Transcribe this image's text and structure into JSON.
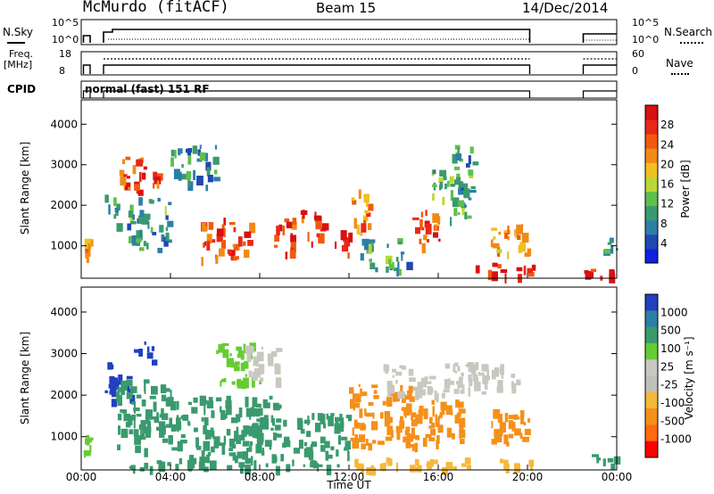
{
  "header": {
    "station": "McMurdo (fitACF)",
    "beam": "Beam 15",
    "date": "14/Dec/2014"
  },
  "params": {
    "nsky_label": "N.Sky",
    "nsearch_label": "N.Search",
    "freq_label_1": "Freq.",
    "freq_label_2": "[MHz]",
    "nave_label": "Nave",
    "cpid_label": "CPID",
    "cpid_value": "normal (fast) 151 RF",
    "nsky_ticks": [
      "10^5",
      "10^0"
    ],
    "nsearch_ticks": [
      "10^5",
      "10^0"
    ],
    "freq_ticks": [
      "18",
      "8"
    ],
    "nave_ticks": [
      "60",
      "0"
    ]
  },
  "colors": {
    "power": [
      "#1020e0",
      "#1f49b0",
      "#2d7ea6",
      "#3a9a6e",
      "#5fbf4a",
      "#b8d838",
      "#f0c020",
      "#f28a14",
      "#f05a10",
      "#e82818",
      "#d81010"
    ],
    "velocity": [
      "#ff0000",
      "#ff6a10",
      "#f5901a",
      "#f5b83a",
      "#c8c8c0",
      "#c0c0b8",
      "#66cc33",
      "#3a9a6e",
      "#2d7ea6",
      "#2040c0"
    ]
  },
  "chart_data": [
    {
      "type": "heatmap",
      "title": "",
      "xlabel": "",
      "ylabel": "Slant Range [km]",
      "xlim": [
        "00:00",
        "24:00"
      ],
      "ylim": [
        200,
        4600
      ],
      "y_ticks": [
        "1000",
        "2000",
        "3000",
        "4000"
      ],
      "colorbar": {
        "label": "Power [dB]",
        "ticks": [
          "4",
          "8",
          "12",
          "16",
          "20",
          "24",
          "28"
        ],
        "range": [
          0,
          32
        ]
      },
      "regions": [
        {
          "t0": 0.1,
          "t1": 0.4,
          "r0": 700,
          "r1": 1200,
          "v": 22
        },
        {
          "t0": 1.0,
          "t1": 1.6,
          "r0": 1500,
          "r1": 2300,
          "v": 10
        },
        {
          "t0": 1.7,
          "t1": 3.4,
          "r0": 2300,
          "r1": 3200,
          "v": 26
        },
        {
          "t0": 2.0,
          "t1": 4.0,
          "r0": 900,
          "r1": 2200,
          "v": 10
        },
        {
          "t0": 4.0,
          "t1": 6.0,
          "r0": 2500,
          "r1": 3500,
          "v": 8
        },
        {
          "t0": 5.2,
          "t1": 6.4,
          "r0": 700,
          "r1": 1700,
          "v": 26
        },
        {
          "t0": 6.5,
          "t1": 7.6,
          "r0": 700,
          "r1": 1600,
          "v": 26
        },
        {
          "t0": 8.5,
          "t1": 9.5,
          "r0": 800,
          "r1": 1700,
          "v": 27
        },
        {
          "t0": 9.8,
          "t1": 10.8,
          "r0": 1100,
          "r1": 1900,
          "v": 28
        },
        {
          "t0": 11.3,
          "t1": 12.0,
          "r0": 700,
          "r1": 1400,
          "v": 28
        },
        {
          "t0": 12.0,
          "t1": 12.9,
          "r0": 1300,
          "r1": 2400,
          "v": 22
        },
        {
          "t0": 12.5,
          "t1": 14.6,
          "r0": 400,
          "r1": 1200,
          "v": 10
        },
        {
          "t0": 14.8,
          "t1": 16.2,
          "r0": 1000,
          "r1": 1900,
          "v": 26
        },
        {
          "t0": 15.5,
          "t1": 17.0,
          "r0": 2200,
          "r1": 3000,
          "v": 12
        },
        {
          "t0": 16.5,
          "t1": 17.6,
          "r0": 1700,
          "r1": 3500,
          "v": 10
        },
        {
          "t0": 17.6,
          "t1": 20.2,
          "r0": 300,
          "r1": 600,
          "v": 30
        },
        {
          "t0": 18.3,
          "t1": 20.0,
          "r0": 800,
          "r1": 1600,
          "v": 22
        },
        {
          "t0": 22.5,
          "t1": 24.0,
          "r0": 250,
          "r1": 500,
          "v": 30
        },
        {
          "t0": 23.4,
          "t1": 24.0,
          "r0": 800,
          "r1": 1200,
          "v": 10
        }
      ]
    },
    {
      "type": "heatmap",
      "title": "",
      "xlabel": "Time UT",
      "ylabel": "Slant Range [km]",
      "xlim": [
        "00:00",
        "24:00"
      ],
      "ylim": [
        200,
        4600
      ],
      "x_ticks": [
        "00:00",
        "04:00",
        "08:00",
        "12:00",
        "16:00",
        "20:00",
        "00:00"
      ],
      "y_ticks": [
        "1000",
        "2000",
        "3000",
        "4000"
      ],
      "colorbar": {
        "label": "Velocity [m s⁻¹]",
        "ticks": [
          "1000",
          "500",
          "100",
          "25",
          "-25",
          "-100",
          "-500",
          "-1000"
        ]
      },
      "regions": [
        {
          "t0": 0.1,
          "t1": 0.4,
          "r0": 600,
          "r1": 1200,
          "v": "100"
        },
        {
          "t0": 1.0,
          "t1": 2.2,
          "r0": 1900,
          "r1": 2800,
          "v": "1000"
        },
        {
          "t0": 1.5,
          "t1": 4.0,
          "r0": 700,
          "r1": 2400,
          "v": "500"
        },
        {
          "t0": 2.3,
          "t1": 3.2,
          "r0": 2800,
          "r1": 3300,
          "v": "1000"
        },
        {
          "t0": 4.0,
          "t1": 9.2,
          "r0": 400,
          "r1": 2000,
          "v": "500"
        },
        {
          "t0": 6.0,
          "t1": 8.0,
          "r0": 2300,
          "r1": 3300,
          "v": "100"
        },
        {
          "t0": 7.3,
          "t1": 9.0,
          "r0": 2400,
          "r1": 3200,
          "v": "25"
        },
        {
          "t0": 9.5,
          "t1": 12.0,
          "r0": 500,
          "r1": 1600,
          "v": "500"
        },
        {
          "t0": 12.0,
          "t1": 15.0,
          "r0": 800,
          "r1": 2300,
          "v": "-100"
        },
        {
          "t0": 14.5,
          "t1": 17.0,
          "r0": 900,
          "r1": 1900,
          "v": "-100"
        },
        {
          "t0": 13.5,
          "t1": 18.0,
          "r0": 2000,
          "r1": 2800,
          "v": "25"
        },
        {
          "t0": 17.3,
          "t1": 19.5,
          "r0": 2200,
          "r1": 2800,
          "v": "25"
        },
        {
          "t0": 18.3,
          "t1": 20.1,
          "r0": 800,
          "r1": 1700,
          "v": "-100"
        },
        {
          "t0": 2.0,
          "t1": 12.0,
          "r0": 250,
          "r1": 450,
          "v": "500"
        },
        {
          "t0": 12.0,
          "t1": 20.2,
          "r0": 250,
          "r1": 500,
          "v": "-25"
        },
        {
          "t0": 22.6,
          "t1": 24.0,
          "r0": 350,
          "r1": 600,
          "v": "500"
        }
      ]
    }
  ]
}
